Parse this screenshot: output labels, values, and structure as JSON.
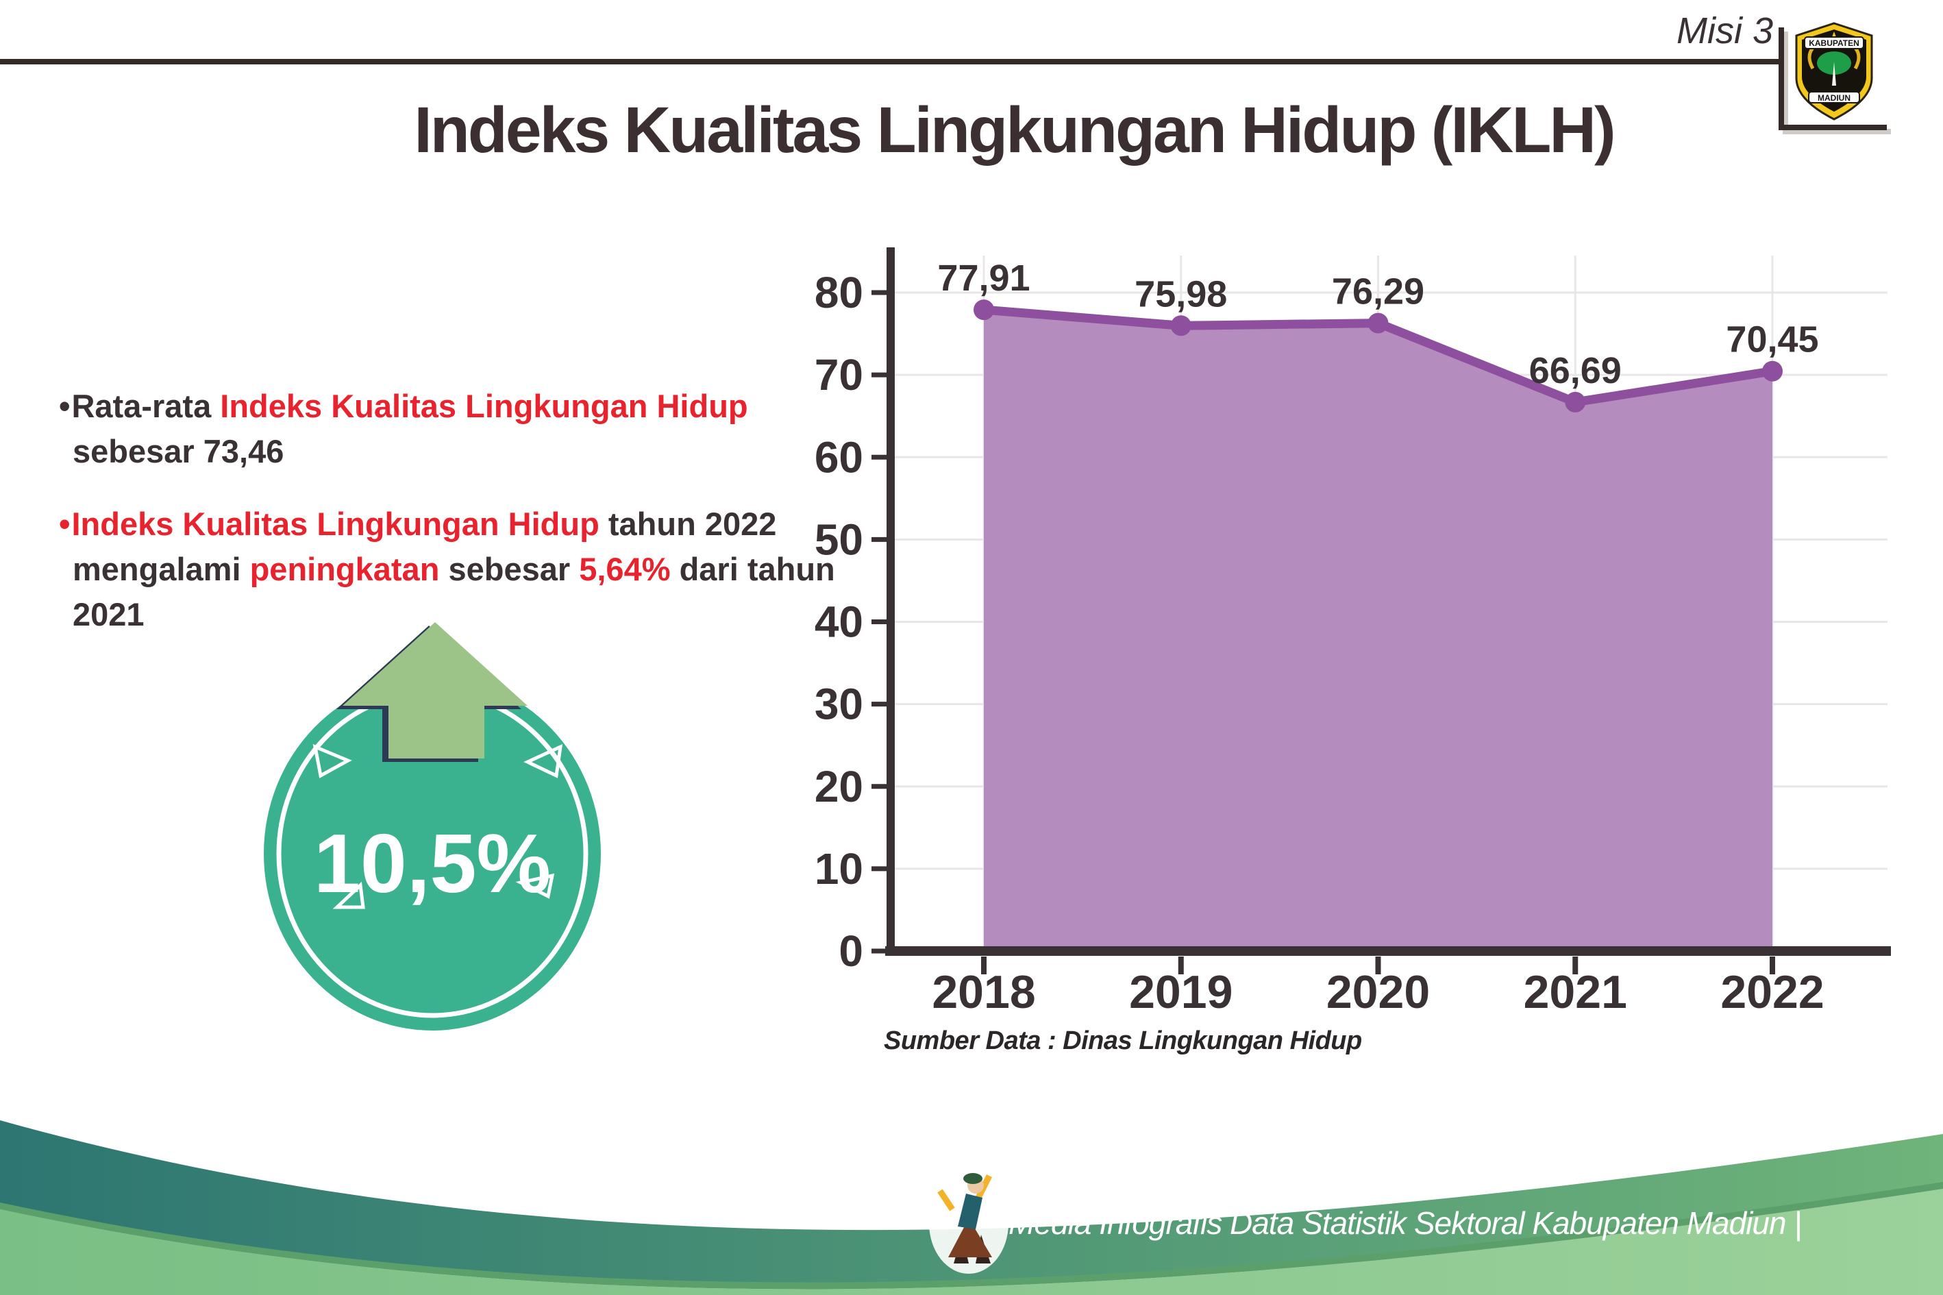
{
  "colors": {
    "accent_red": "#e8232e",
    "ink": "#3a3134",
    "badge_teal": "#3ab28f",
    "arrow_green": "#9cc489",
    "arrow_outline": "#2c3a56",
    "chart_line": "#8d4f9e",
    "chart_fill": "#b48cbd",
    "gridline": "#e8e6e8",
    "footer_teal": "#2d7672",
    "footer_green_left": "#7abf85",
    "footer_green_right": "#9bd19a",
    "logo_yellow": "#f2c81d"
  },
  "header": {
    "misi_label": "Misi 3",
    "title": "Indeks Kualitas Lingkungan Hidup (IKLH)",
    "logo": {
      "top_text": "KABUPATEN",
      "bottom_text": "MADIUN"
    }
  },
  "bullet_marker": "•",
  "bullets": [
    {
      "segments": [
        {
          "text": "Rata-rata ",
          "red": false
        },
        {
          "text": "Indeks Kualitas Lingkungan Hidup",
          "red": true
        },
        {
          "text": " sebesar 73,46",
          "red": false
        }
      ]
    },
    {
      "segments": [
        {
          "text": "Indeks Kualitas Lingkungan Hidup",
          "red": true
        },
        {
          "text": " tahun 2022 mengalami ",
          "red": false
        },
        {
          "text": "peningkatan",
          "red": true
        },
        {
          "text": " sebesar ",
          "red": false
        },
        {
          "text": "5,64%",
          "red": true
        },
        {
          "text": " dari tahun 2021",
          "red": false
        }
      ]
    }
  ],
  "badge": {
    "value": "10,5%"
  },
  "chart_data": {
    "type": "area",
    "title": "",
    "xlabel": "",
    "ylabel": "",
    "categories": [
      "2018",
      "2019",
      "2020",
      "2021",
      "2022"
    ],
    "values": [
      77.91,
      75.98,
      76.29,
      66.69,
      70.45
    ],
    "value_labels": [
      "77,91",
      "75,98",
      "76,29",
      "66,69",
      "70,45"
    ],
    "yticks": [
      0,
      10,
      20,
      30,
      40,
      50,
      60,
      70,
      80
    ],
    "ylim": [
      0,
      85
    ],
    "grid": true,
    "legend": "none",
    "source_note": "Sumber Data : Dinas Lingkungan Hidup"
  },
  "footer": {
    "credit": "Media Infografis Data Statistik Sektoral Kabupaten Madiun |"
  }
}
